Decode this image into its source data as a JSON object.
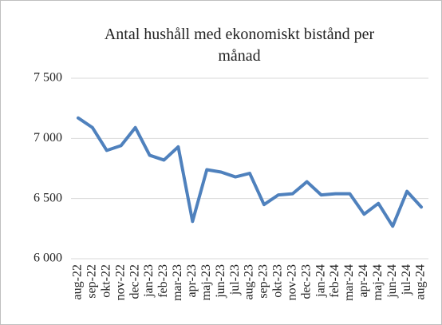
{
  "chart_data": {
    "type": "line",
    "title": "Antal hushåll med ekonomiskt bistånd per månad",
    "categories": [
      "aug-22",
      "sep-22",
      "okt-22",
      "nov-22",
      "dec-22",
      "jan-23",
      "feb-23",
      "mar-23",
      "apr-23",
      "maj-23",
      "jun-23",
      "jul-23",
      "aug-23",
      "sep-23",
      "okt-23",
      "nov-23",
      "dec-23",
      "jan-24",
      "feb-24",
      "mar-24",
      "apr-24",
      "maj-24",
      "jun-24",
      "jul-24",
      "aug-24"
    ],
    "series": [
      {
        "name": "Antal hushåll",
        "color": "#4f81bd",
        "values": [
          7170,
          7090,
          6900,
          6940,
          7090,
          6860,
          6820,
          6930,
          6310,
          6740,
          6720,
          6680,
          6710,
          6450,
          6530,
          6540,
          6640,
          6530,
          6540,
          6540,
          6370,
          6460,
          6270,
          6560,
          6430
        ]
      }
    ],
    "ylim": [
      6000,
      7500
    ],
    "yticks": [
      {
        "value": 6000,
        "label": "6 000"
      },
      {
        "value": 6500,
        "label": "6 500"
      },
      {
        "value": 7000,
        "label": "7 000"
      },
      {
        "value": 7500,
        "label": "7 500"
      }
    ],
    "grid": true
  }
}
